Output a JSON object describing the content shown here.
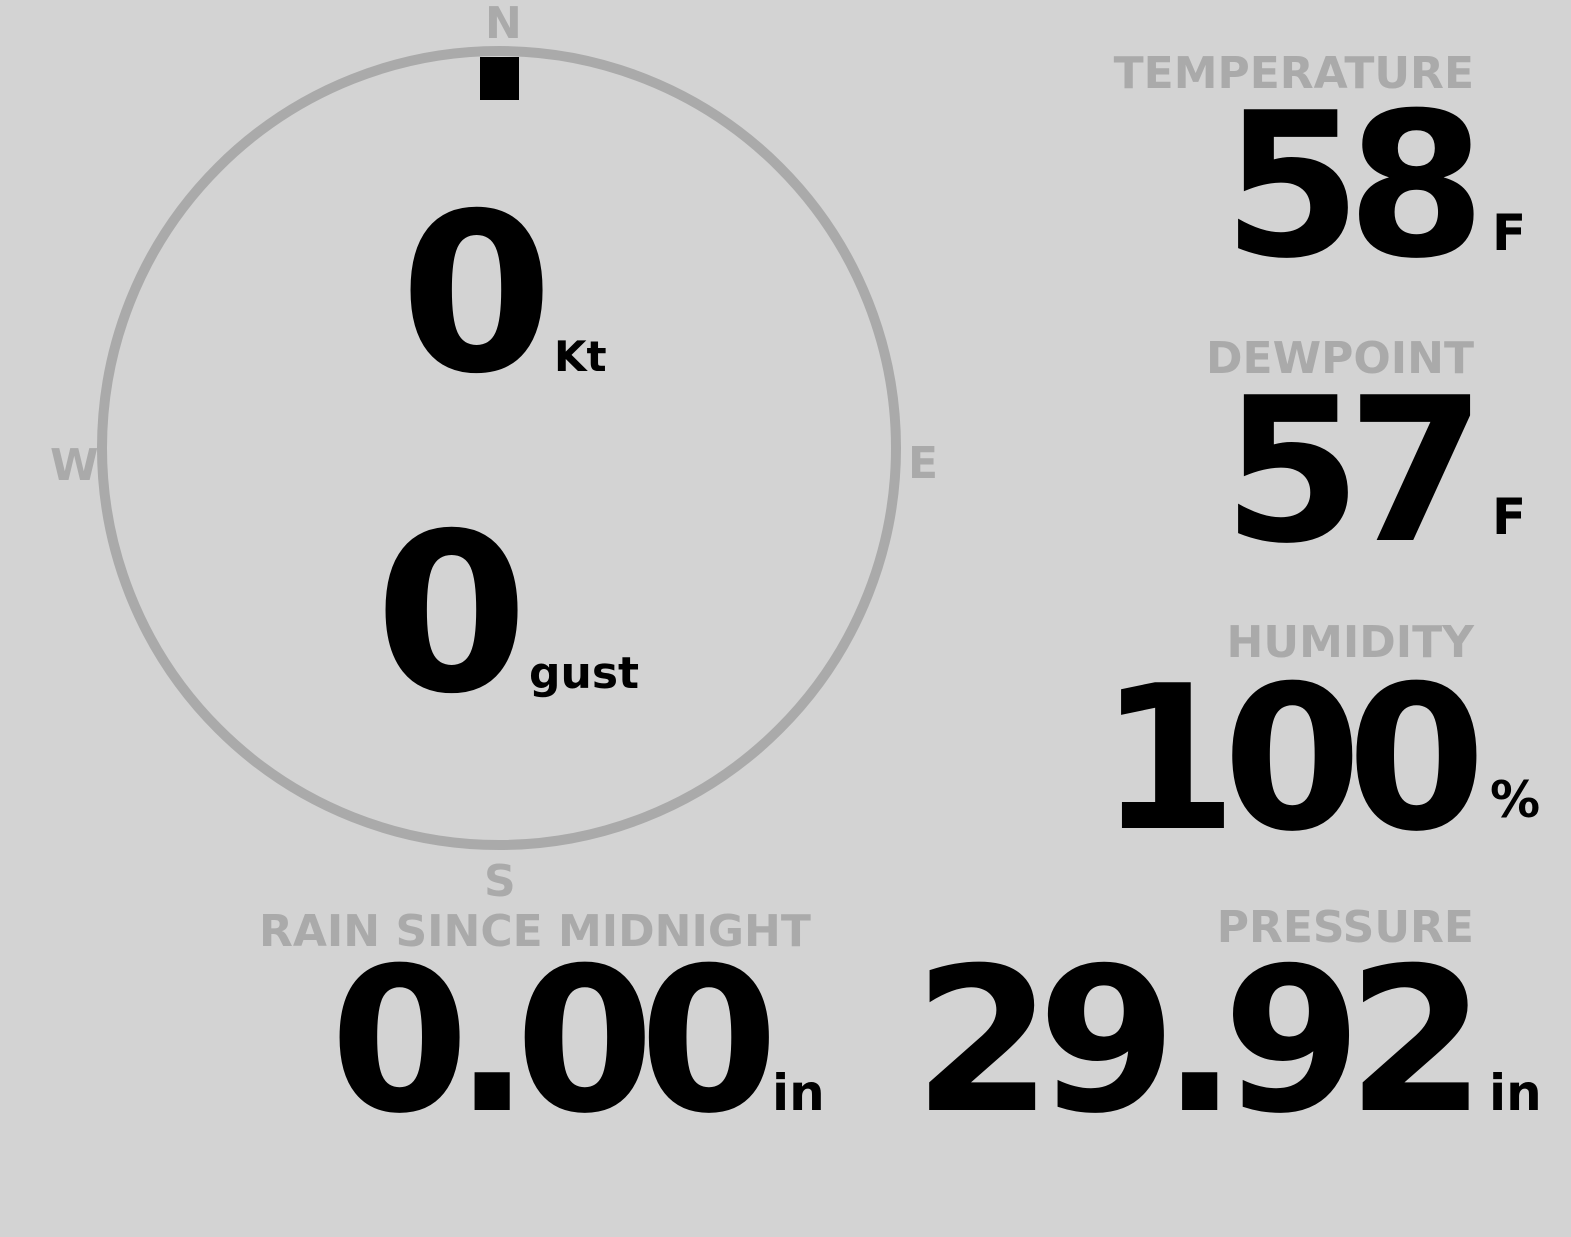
{
  "colors": {
    "background": "#d3d3d3",
    "label": "#aaaaaa",
    "value": "#000000"
  },
  "compass": {
    "directions": {
      "n": "N",
      "e": "E",
      "s": "S",
      "w": "W"
    },
    "wind_direction_deg": 0,
    "wind_speed": "0",
    "wind_speed_unit": "Kt",
    "gust": "0",
    "gust_unit": "gust"
  },
  "temperature": {
    "label": "TEMPERATURE",
    "value": "58",
    "unit": "F"
  },
  "dewpoint": {
    "label": "DEWPOINT",
    "value": "57",
    "unit": "F"
  },
  "humidity": {
    "label": "HUMIDITY",
    "value": "100",
    "unit": "%"
  },
  "pressure": {
    "label": "PRESSURE",
    "value": "29.92",
    "unit": "in"
  },
  "rain": {
    "label": "RAIN SINCE MIDNIGHT",
    "value": "0.00",
    "unit": "in"
  }
}
